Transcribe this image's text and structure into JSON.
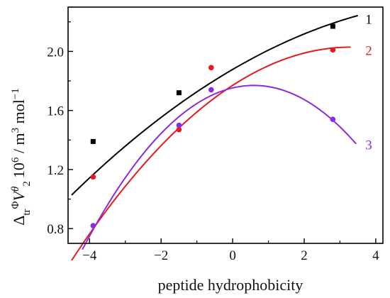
{
  "chart_data": {
    "type": "scatter",
    "xlabel": "peptide hydrophobicity",
    "ylabel": {
      "delta": "Δ",
      "delta_sub": "tr",
      "phi": "Φ",
      "v": "V",
      "v_sup": "θ",
      "v_sub": "2",
      "rest": "10",
      "rest_sup": "6",
      "units": " / m",
      "units_sup": "3",
      "mol": " mol",
      "mol_sup": "−1"
    },
    "xlim": [
      -4.6,
      4.2
    ],
    "ylim": [
      0.7,
      2.3
    ],
    "x_ticks": [
      {
        "value": -4,
        "label": "−4"
      },
      {
        "value": -2,
        "label": "−2"
      },
      {
        "value": 0,
        "label": "0"
      },
      {
        "value": 2,
        "label": "2"
      },
      {
        "value": 4,
        "label": "4"
      }
    ],
    "y_ticks": [
      {
        "value": 0.8,
        "label": "0.8"
      },
      {
        "value": 1.2,
        "label": "1.2"
      },
      {
        "value": 1.6,
        "label": "1.6"
      },
      {
        "value": 2.0,
        "label": "2.0"
      }
    ],
    "series": [
      {
        "name": "1",
        "color": "#000000",
        "marker": "square",
        "points": [
          [
            -3.9,
            1.39
          ],
          [
            -1.5,
            1.72
          ],
          [
            2.8,
            2.17
          ]
        ],
        "fit": [
          -0.0106,
          0.1413,
          1.8779
        ],
        "fit_range": [
          -4.5,
          3.5
        ],
        "label_at": [
          3.55,
          2.22
        ]
      },
      {
        "name": "2",
        "color": "#e8191e",
        "marker": "circle",
        "points": [
          [
            -3.9,
            1.15
          ],
          [
            -1.5,
            1.47
          ],
          [
            -0.6,
            1.89
          ],
          [
            2.8,
            2.01
          ]
        ],
        "fit": [
          -0.0237,
          0.1567,
          1.77
        ],
        "fit_range": [
          -4.5,
          3.3
        ],
        "label_at": [
          3.55,
          2.01
        ]
      },
      {
        "name": "3",
        "color": "#8a2be2",
        "marker": "circle",
        "points": [
          [
            -3.9,
            0.82
          ],
          [
            -1.5,
            1.5
          ],
          [
            -0.6,
            1.74
          ],
          [
            2.8,
            1.54
          ]
        ],
        "fit": [
          -0.0484,
          0.0573,
          1.7526
        ],
        "fit_range": [
          -4.2,
          3.45
        ],
        "label_at": [
          3.55,
          1.37
        ]
      }
    ]
  }
}
